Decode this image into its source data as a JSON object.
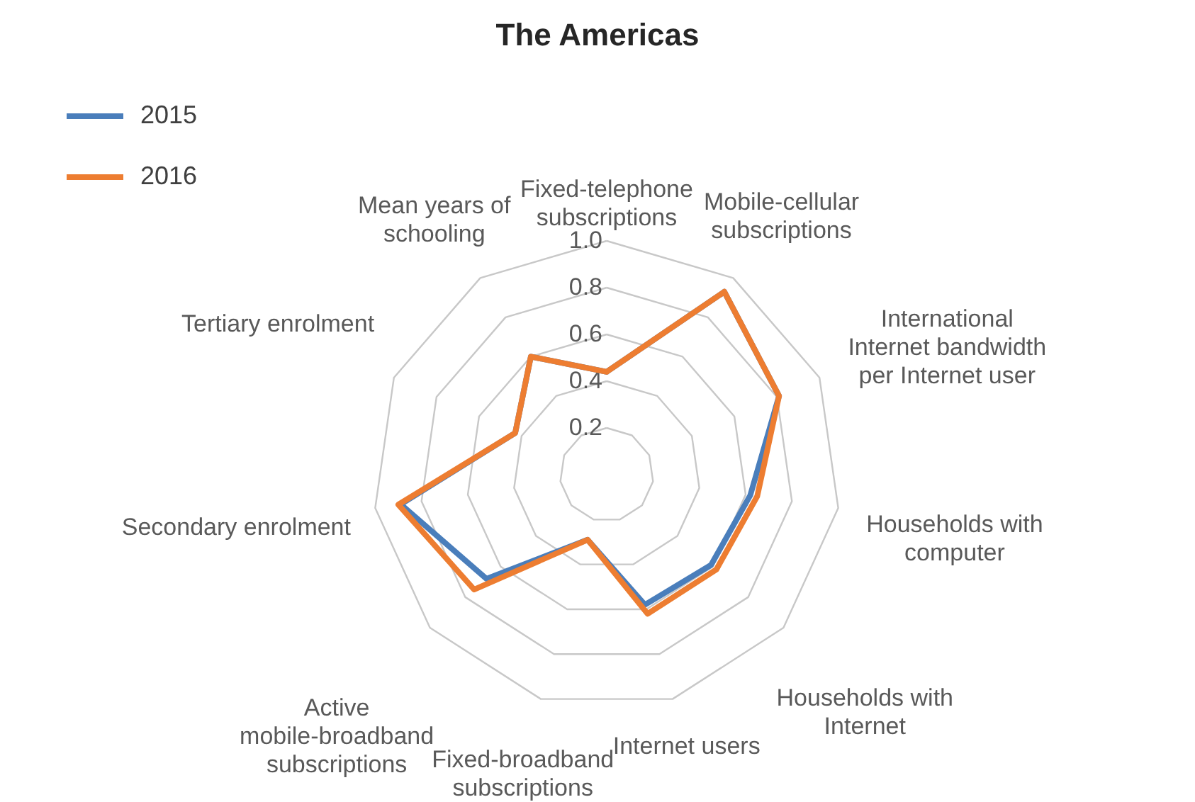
{
  "chart_data": {
    "type": "radar",
    "title": "The Americas",
    "categories": [
      "Fixed-telephone subscriptions",
      "Mobile-cellular subscriptions",
      "International Internet bandwidth per Internet user",
      "Households with computer",
      "Households with Internet",
      "Internet users",
      "Fixed-broadband subscriptions",
      "Active mobile-broadband subscriptions",
      "Secondary enrolment",
      "Tertiary enrolment",
      "Mean years of schooling"
    ],
    "ylim": [
      0,
      1
    ],
    "yticks": [
      0.2,
      0.4,
      0.6,
      0.8,
      {
        "value": 1,
        "label": "1.0"
      }
    ],
    "grid": true,
    "legend": "top left",
    "series": [
      {
        "name": "2015",
        "color": "#4a7ebb",
        "values": [
          0.44,
          0.93,
          0.81,
          0.62,
          0.59,
          0.58,
          0.29,
          0.68,
          0.89,
          0.43,
          0.6
        ]
      },
      {
        "name": "2016",
        "color": "#ed7d31",
        "values": [
          0.44,
          0.93,
          0.81,
          0.65,
          0.62,
          0.62,
          0.29,
          0.75,
          0.9,
          0.43,
          0.6
        ]
      }
    ]
  }
}
